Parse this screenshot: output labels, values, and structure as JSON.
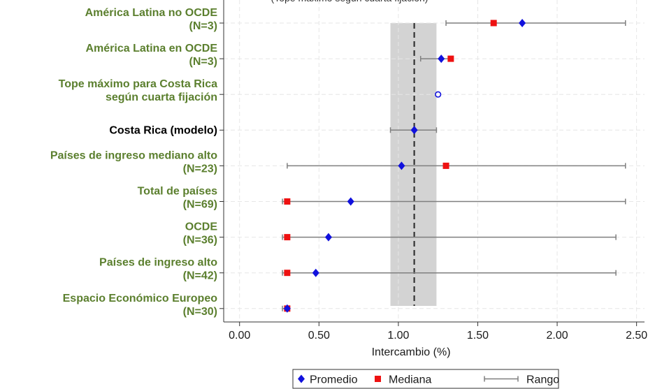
{
  "chart_data": {
    "type": "scatter",
    "title": "",
    "top_cut_text": "(Tope máximo según cuarta fijación)",
    "xlabel": "Intercambio (%)",
    "ylabel": "",
    "xlim": [
      -0.1,
      2.55
    ],
    "xticks": [
      0,
      0.5,
      1,
      1.5,
      2,
      2.5
    ],
    "xtick_labels": [
      "0.00",
      "0.50",
      "1.00",
      "1.50",
      "2.00",
      "2.50"
    ],
    "grid": true,
    "legend_position": "bottom-center",
    "reference_line": {
      "x": 1.1,
      "style": "dashed"
    },
    "shaded_band": {
      "x_from": 0.95,
      "x_to": 1.24,
      "color": "#d3d3d3"
    },
    "colors": {
      "promedio": "#1111dd",
      "mediana": "#ee1111",
      "rango": "#7f7f7f",
      "label_green": "#5b7f2e",
      "label_black": "#000000"
    },
    "categories": [
      {
        "lines": [
          "América Latina no OCDE",
          "(N=3)"
        ],
        "color": "green",
        "promedio": 1.78,
        "mediana": 1.6,
        "range": [
          1.3,
          2.43
        ]
      },
      {
        "lines": [
          "América Latina en OCDE",
          "(N=3)"
        ],
        "color": "green",
        "promedio": 1.27,
        "mediana": 1.33,
        "range": [
          1.14,
          1.33
        ]
      },
      {
        "lines": [
          "Tope máximo para Costa Rica",
          "según cuarta fijación"
        ],
        "color": "green",
        "marker": "open-circle",
        "value": 1.25
      },
      {
        "lines": [
          "Costa Rica (modelo)"
        ],
        "color": "black",
        "promedio": 1.1,
        "range": [
          0.95,
          1.24
        ]
      },
      {
        "lines": [
          "Países de ingreso mediano alto",
          "(N=23)"
        ],
        "color": "green",
        "promedio": 1.02,
        "mediana": 1.3,
        "range": [
          0.3,
          2.43
        ]
      },
      {
        "lines": [
          "Total de países",
          "(N=69)"
        ],
        "color": "green",
        "promedio": 0.7,
        "mediana": 0.3,
        "range": [
          0.27,
          2.43
        ]
      },
      {
        "lines": [
          "OCDE",
          "(N=36)"
        ],
        "color": "green",
        "promedio": 0.56,
        "mediana": 0.3,
        "range": [
          0.27,
          2.37
        ]
      },
      {
        "lines": [
          "Países de ingreso alto",
          "(N=42)"
        ],
        "color": "green",
        "promedio": 0.48,
        "mediana": 0.3,
        "range": [
          0.27,
          2.37
        ]
      },
      {
        "lines": [
          "Espacio Económico Europeo",
          "(N=30)"
        ],
        "color": "green",
        "promedio": 0.3,
        "mediana": 0.3,
        "range": [
          0.27,
          0.31
        ]
      }
    ],
    "legend": [
      {
        "key": "promedio",
        "label": "Promedio",
        "marker": "diamond"
      },
      {
        "key": "mediana",
        "label": "Mediana",
        "marker": "square"
      },
      {
        "key": "rango",
        "label": "Rango",
        "marker": "range-line"
      }
    ]
  }
}
